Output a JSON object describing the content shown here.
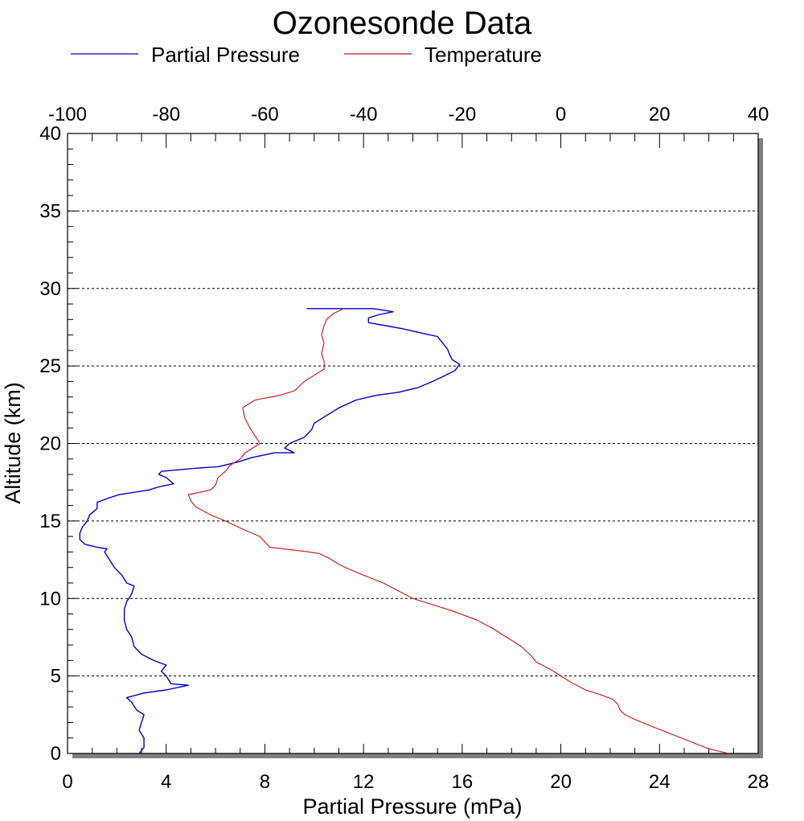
{
  "chart_data": {
    "type": "line",
    "title": "Ozonesonde Data",
    "xlabel": "Partial Pressure (mPa)",
    "ylabel": "Altitude (km)",
    "x_bottom": {
      "lim": [
        0,
        28
      ],
      "ticks": [
        0,
        4,
        8,
        12,
        16,
        20,
        24,
        28
      ],
      "tick_labels": [
        "0",
        "4",
        "8",
        "12",
        "16",
        "20",
        "24",
        "28"
      ]
    },
    "x_top": {
      "lim": [
        -100,
        40
      ],
      "ticks": [
        -100,
        -80,
        -60,
        -40,
        -20,
        0,
        20,
        40
      ],
      "tick_labels": [
        "-100",
        "-80",
        "-60",
        "-40",
        "-20",
        "0",
        "20",
        "40"
      ]
    },
    "y": {
      "lim": [
        0,
        40
      ],
      "ticks": [
        0,
        5,
        10,
        15,
        20,
        25,
        30,
        35,
        40
      ],
      "tick_labels": [
        "0",
        "5",
        "10",
        "15",
        "20",
        "25",
        "30",
        "35",
        "40"
      ]
    },
    "grid": "horizontal dotted at major y ticks",
    "legend": {
      "position": "top",
      "entries": [
        "Partial Pressure",
        "Temperature"
      ]
    },
    "series": [
      {
        "name": "Partial Pressure",
        "axis": "bottom",
        "color": "#0000c8",
        "points": [
          [
            2.9,
            0.0
          ],
          [
            3.1,
            0.4
          ],
          [
            3.1,
            1.0
          ],
          [
            2.9,
            1.5
          ],
          [
            3.0,
            2.0
          ],
          [
            3.1,
            2.5
          ],
          [
            2.8,
            2.8
          ],
          [
            2.6,
            3.3
          ],
          [
            2.4,
            3.6
          ],
          [
            3.1,
            3.9
          ],
          [
            4.0,
            4.1
          ],
          [
            4.9,
            4.4
          ],
          [
            4.2,
            4.5
          ],
          [
            4.0,
            5.0
          ],
          [
            3.8,
            5.3
          ],
          [
            4.0,
            5.7
          ],
          [
            3.5,
            6.0
          ],
          [
            3.0,
            6.4
          ],
          [
            2.7,
            6.9
          ],
          [
            2.6,
            7.5
          ],
          [
            2.4,
            8.0
          ],
          [
            2.3,
            8.6
          ],
          [
            2.3,
            9.3
          ],
          [
            2.4,
            9.8
          ],
          [
            2.6,
            10.3
          ],
          [
            2.7,
            10.8
          ],
          [
            2.4,
            11.0
          ],
          [
            2.2,
            11.5
          ],
          [
            1.9,
            12.0
          ],
          [
            1.7,
            12.5
          ],
          [
            1.5,
            13.0
          ],
          [
            1.6,
            13.2
          ],
          [
            1.2,
            13.3
          ],
          [
            0.7,
            13.5
          ],
          [
            0.5,
            13.8
          ],
          [
            0.5,
            14.2
          ],
          [
            0.6,
            14.6
          ],
          [
            0.8,
            15.0
          ],
          [
            0.9,
            15.4
          ],
          [
            1.2,
            15.8
          ],
          [
            1.2,
            16.2
          ],
          [
            1.7,
            16.5
          ],
          [
            2.1,
            16.7
          ],
          [
            2.5,
            16.8
          ],
          [
            3.3,
            17.0
          ],
          [
            3.7,
            17.2
          ],
          [
            4.3,
            17.4
          ],
          [
            4.0,
            17.8
          ],
          [
            3.7,
            18.0
          ],
          [
            3.8,
            18.2
          ],
          [
            5.2,
            18.4
          ],
          [
            6.1,
            18.5
          ],
          [
            6.9,
            18.8
          ],
          [
            7.5,
            19.1
          ],
          [
            8.4,
            19.4
          ],
          [
            9.2,
            19.4
          ],
          [
            8.8,
            19.7
          ],
          [
            9.0,
            20.0
          ],
          [
            9.6,
            20.4
          ],
          [
            9.9,
            20.9
          ],
          [
            10.0,
            21.3
          ],
          [
            10.5,
            21.8
          ],
          [
            11.0,
            22.3
          ],
          [
            11.7,
            22.8
          ],
          [
            12.5,
            23.1
          ],
          [
            13.4,
            23.3
          ],
          [
            14.2,
            23.6
          ],
          [
            14.8,
            24.0
          ],
          [
            15.2,
            24.3
          ],
          [
            15.7,
            24.7
          ],
          [
            15.9,
            25.1
          ],
          [
            15.6,
            25.4
          ],
          [
            15.5,
            25.7
          ],
          [
            15.4,
            26.1
          ],
          [
            15.2,
            26.5
          ],
          [
            15.0,
            26.9
          ],
          [
            14.4,
            27.1
          ],
          [
            13.6,
            27.4
          ],
          [
            12.9,
            27.6
          ],
          [
            12.2,
            27.8
          ],
          [
            12.2,
            28.1
          ],
          [
            12.6,
            28.3
          ],
          [
            13.2,
            28.5
          ],
          [
            12.4,
            28.7
          ],
          [
            9.7,
            28.7
          ]
        ]
      },
      {
        "name": "Temperature",
        "axis": "top",
        "color": "#c81414",
        "points": [
          [
            34.0,
            0.0
          ],
          [
            30.0,
            0.3
          ],
          [
            26.0,
            0.8
          ],
          [
            22.0,
            1.3
          ],
          [
            18.0,
            1.8
          ],
          [
            15.0,
            2.2
          ],
          [
            13.0,
            2.5
          ],
          [
            12.0,
            2.8
          ],
          [
            11.5,
            3.2
          ],
          [
            10.5,
            3.5
          ],
          [
            8.0,
            3.8
          ],
          [
            5.0,
            4.1
          ],
          [
            2.0,
            4.6
          ],
          [
            0.0,
            5.0
          ],
          [
            -2.0,
            5.4
          ],
          [
            -5.0,
            5.9
          ],
          [
            -6.0,
            6.3
          ],
          [
            -8.0,
            6.9
          ],
          [
            -11.0,
            7.5
          ],
          [
            -14.0,
            8.1
          ],
          [
            -17.0,
            8.6
          ],
          [
            -22.0,
            9.2
          ],
          [
            -27.0,
            9.7
          ],
          [
            -30.0,
            10.0
          ],
          [
            -33.0,
            10.5
          ],
          [
            -36.0,
            11.0
          ],
          [
            -40.0,
            11.5
          ],
          [
            -43.0,
            11.9
          ],
          [
            -45.0,
            12.2
          ],
          [
            -47.0,
            12.6
          ],
          [
            -49.0,
            12.9
          ],
          [
            -51.0,
            13.0
          ],
          [
            -59.0,
            13.3
          ],
          [
            -61.0,
            14.0
          ],
          [
            -64.0,
            14.4
          ],
          [
            -68.0,
            15.0
          ],
          [
            -71.0,
            15.4
          ],
          [
            -74.0,
            15.9
          ],
          [
            -75.0,
            16.3
          ],
          [
            -75.5,
            16.7
          ],
          [
            -74.0,
            16.8
          ],
          [
            -71.0,
            17.0
          ],
          [
            -70.0,
            17.3
          ],
          [
            -69.5,
            17.8
          ],
          [
            -68.0,
            18.2
          ],
          [
            -67.0,
            18.6
          ],
          [
            -65.0,
            19.0
          ],
          [
            -64.0,
            19.4
          ],
          [
            -62.0,
            19.8
          ],
          [
            -61.0,
            20.0
          ],
          [
            -62.0,
            20.5
          ],
          [
            -63.0,
            21.0
          ],
          [
            -64.0,
            21.6
          ],
          [
            -64.5,
            22.3
          ],
          [
            -63.0,
            22.6
          ],
          [
            -62.0,
            22.8
          ],
          [
            -57.0,
            23.1
          ],
          [
            -54.0,
            23.4
          ],
          [
            -52.0,
            24.0
          ],
          [
            -50.0,
            24.4
          ],
          [
            -48.0,
            24.8
          ],
          [
            -48.0,
            25.3
          ],
          [
            -48.5,
            25.8
          ],
          [
            -48.0,
            26.5
          ],
          [
            -48.5,
            27.0
          ],
          [
            -48.0,
            27.6
          ],
          [
            -47.5,
            28.0
          ],
          [
            -46.0,
            28.4
          ],
          [
            -44.0,
            28.7
          ]
        ]
      }
    ]
  }
}
